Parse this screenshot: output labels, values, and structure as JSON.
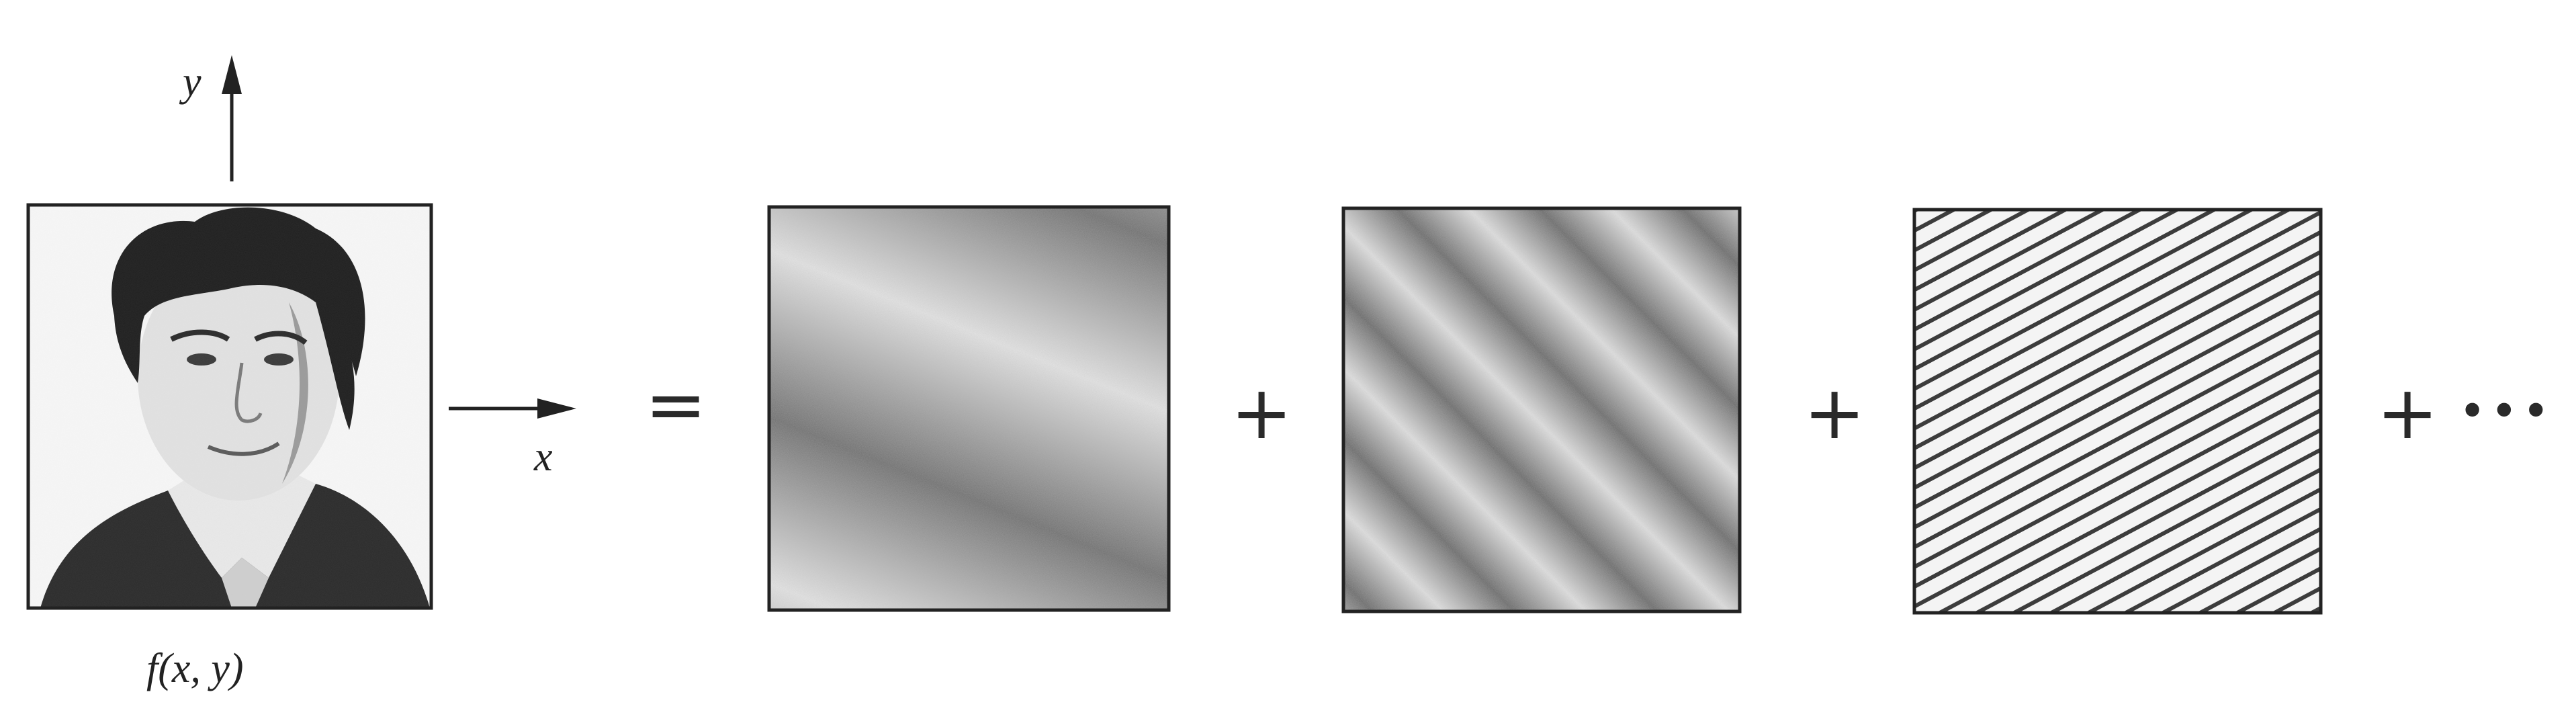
{
  "diagram": {
    "axis_labels": {
      "y": "y",
      "x": "x"
    },
    "portrait_caption": "f(x, y)",
    "equals": "=",
    "plus": "+",
    "ellipsis": "•••"
  }
}
